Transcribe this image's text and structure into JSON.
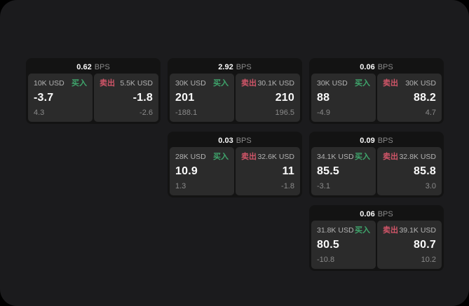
{
  "labels": {
    "buy": "买入",
    "sell": "卖出",
    "bps": "BPS"
  },
  "colors": {
    "page_bg": "#000000",
    "container_bg": "#1b1b1d",
    "card_bg": "#131313",
    "panel_bg": "#2b2b2b",
    "buy_green": "#3fa56c",
    "sell_red": "#d05568",
    "text_primary": "#fafafa",
    "text_muted": "#8a8a8a",
    "text_amount": "#b3b3b3"
  },
  "cards": [
    {
      "col": 0,
      "bps": "0.62",
      "buy": {
        "amount": "10K USD",
        "value": "-3.7",
        "sub": "4.3"
      },
      "sell": {
        "amount": "5.5K USD",
        "value": "-1.8",
        "sub": "-2.6"
      }
    },
    {
      "col": 1,
      "bps": "2.92",
      "buy": {
        "amount": "30K USD",
        "value": "201",
        "sub": "-188.1"
      },
      "sell": {
        "amount": "30.1K USD",
        "value": "210",
        "sub": "196.5"
      }
    },
    {
      "col": 2,
      "bps": "0.06",
      "buy": {
        "amount": "30K USD",
        "value": "88",
        "sub": "-4.9"
      },
      "sell": {
        "amount": "30K USD",
        "value": "88.2",
        "sub": "4.7"
      }
    },
    {
      "col": 1,
      "bps": "0.03",
      "buy": {
        "amount": "28K USD",
        "value": "10.9",
        "sub": "1.3"
      },
      "sell": {
        "amount": "32.6K USD",
        "value": "11",
        "sub": "-1.8"
      }
    },
    {
      "col": 2,
      "bps": "0.09",
      "buy": {
        "amount": "34.1K USD",
        "value": "85.5",
        "sub": "-3.1"
      },
      "sell": {
        "amount": "32.8K USD",
        "value": "85.8",
        "sub": "3.0"
      }
    },
    {
      "col": 2,
      "bps": "0.06",
      "buy": {
        "amount": "31.8K USD",
        "value": "80.5",
        "sub": "-10.8"
      },
      "sell": {
        "amount": "39.1K USD",
        "value": "80.7",
        "sub": "10.2"
      }
    }
  ]
}
